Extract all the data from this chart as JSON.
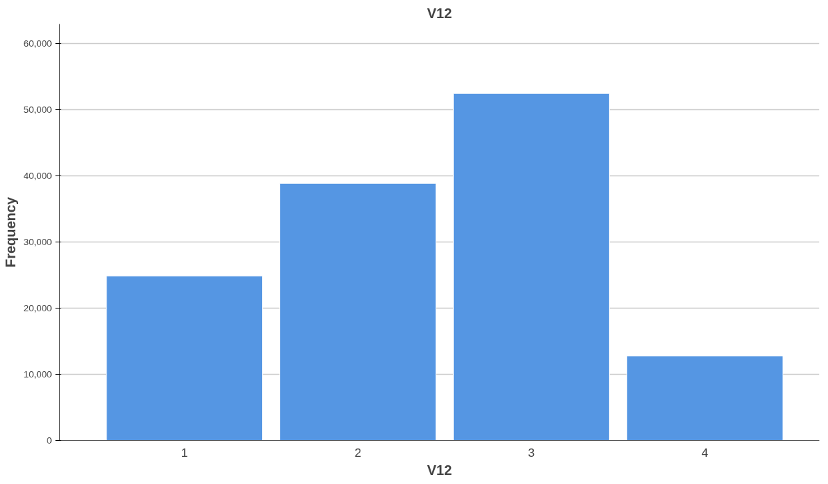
{
  "chart_data": {
    "type": "bar",
    "title": "V12",
    "xlabel": "V12",
    "ylabel": "Frequency",
    "categories": [
      "1",
      "2",
      "3",
      "4"
    ],
    "series": [
      {
        "color": "#5596e3",
        "values": [
          24900,
          38900,
          52500,
          12800
        ]
      }
    ],
    "ylim": [
      0,
      63000
    ],
    "yticks": [
      0,
      {
        "value": 10000,
        "label": "10,000"
      },
      {
        "value": 20000,
        "label": "20,000"
      },
      {
        "value": 30000,
        "label": "30,000"
      },
      {
        "value": 40000,
        "label": "40,000"
      },
      {
        "value": 50000,
        "label": "50,000"
      },
      {
        "value": 60000,
        "label": "60,000"
      }
    ],
    "grid": "y"
  }
}
